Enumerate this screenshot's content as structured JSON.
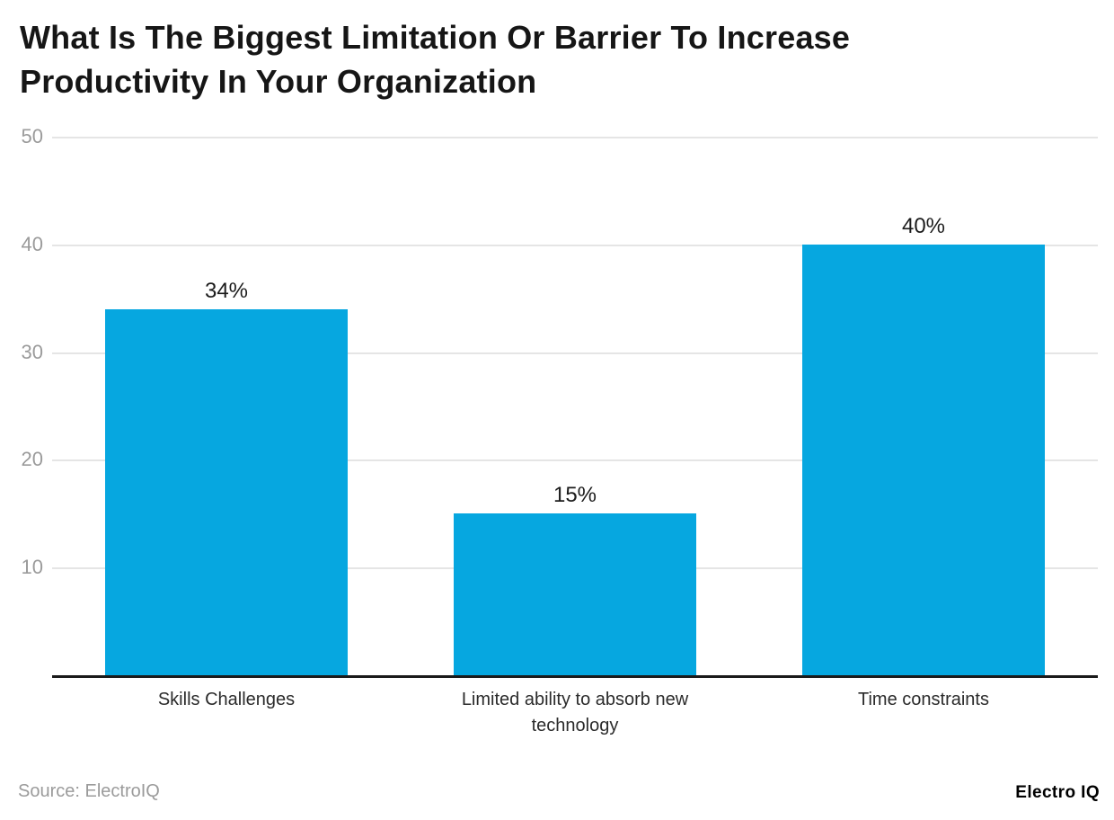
{
  "title": "What Is The Biggest Limitation Or Barrier To Increase Productivity In Your Organization",
  "source": "Source: ElectroIQ",
  "logo": "Electro IQ",
  "colors": {
    "bar": "#06a7e0",
    "grid": "#e5e5e5",
    "axis": "#1a1a1a",
    "tick_label": "#9b9b9b",
    "title": "#161616",
    "value_label": "#1c1c1c",
    "category_label": "#2b2b2b",
    "source": "#9b9b9b",
    "background": "#ffffff"
  },
  "chart_data": {
    "type": "bar",
    "title": "What Is The Biggest Limitation Or Barrier To Increase Productivity In Your Organization",
    "categories": [
      "Skills Challenges",
      "Limited ability to absorb new technology",
      "Time constraints"
    ],
    "values": [
      34,
      15,
      40
    ],
    "value_labels": [
      "34%",
      "15%",
      "40%"
    ],
    "xlabel": "",
    "ylabel": "",
    "ylim": [
      0,
      50
    ],
    "yticks": [
      10,
      20,
      30,
      40,
      50
    ],
    "grid": true,
    "legend": false,
    "bar_color": "#06a7e0"
  }
}
